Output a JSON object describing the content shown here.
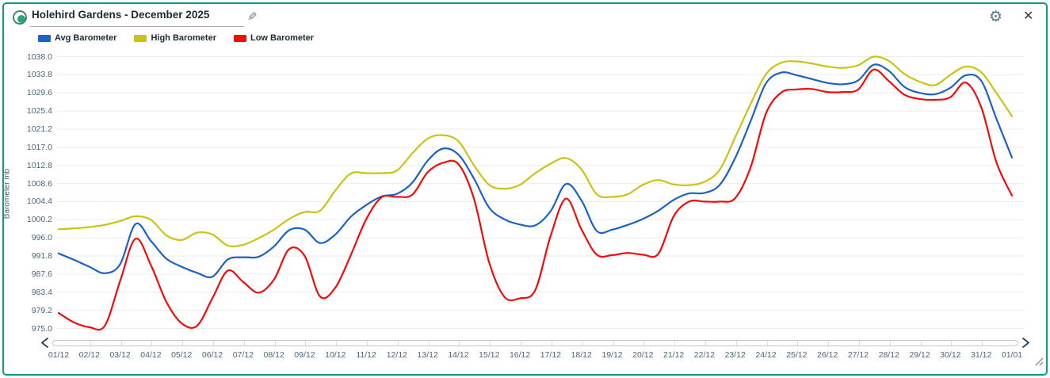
{
  "header": {
    "title": "Holehird Gardens - December 2025",
    "icons": {
      "radio": "radio-selected-icon",
      "edit": "pencil-icon",
      "settings": "gear-icon",
      "close": "close-icon"
    }
  },
  "colors": {
    "panel_border": "#0e9a88",
    "radio_ring": "#49807c",
    "radio_dot": "#2aa37a",
    "avg": "#1b62c2",
    "high": "#c9c413",
    "low": "#f30b0b",
    "grid": "#ebebeb",
    "axis_text": "#49687a",
    "title_text": "#1b2a33",
    "chevron": "#24425c",
    "scroll_tick": "#dcdcdc"
  },
  "legend": [
    {
      "label": "Avg Barometer",
      "color_key": "avg"
    },
    {
      "label": "High Barometer",
      "color_key": "high"
    },
    {
      "label": "Low Barometer",
      "color_key": "low"
    }
  ],
  "chart_data": {
    "type": "line",
    "title": "Holehird Gardens - December 2025",
    "xlabel": "",
    "ylabel": "Barometer mb",
    "ylim": [
      975.0,
      1038.0
    ],
    "ytick_interval": 4.2,
    "yticks": [
      "1038.0",
      "1033.8",
      "1029.6",
      "1025.4",
      "1021.2",
      "1017.0",
      "1012.8",
      "1008.6",
      "1004.4",
      "1000.2",
      "996.0",
      "991.8",
      "987.6",
      "983.4",
      "979.2",
      "975.0"
    ],
    "x_tick_labels": [
      "01/12",
      "02/12",
      "03/12",
      "04/12",
      "05/12",
      "06/12",
      "07/12",
      "08/12",
      "09/12",
      "10/12",
      "11/12",
      "12/12",
      "13/12",
      "14/12",
      "15/12",
      "16/12",
      "17/12",
      "18/12",
      "19/12",
      "20/12",
      "21/12",
      "22/12",
      "23/12",
      "24/12",
      "25/12",
      "26/12",
      "27/12",
      "28/12",
      "29/12",
      "30/12",
      "31/12",
      "01/01"
    ],
    "x_units": "day of month (half-day sampling)",
    "x": [
      1,
      1.5,
      2,
      2.5,
      3,
      3.5,
      4,
      4.5,
      5,
      5.5,
      6,
      6.5,
      7,
      7.5,
      8,
      8.5,
      9,
      9.5,
      10,
      10.5,
      11,
      11.5,
      12,
      12.5,
      13,
      13.5,
      14,
      14.5,
      15,
      15.5,
      16,
      16.5,
      17,
      17.5,
      18,
      18.5,
      19,
      19.5,
      20,
      20.5,
      21,
      21.5,
      22,
      22.5,
      23,
      23.5,
      24,
      24.5,
      25,
      25.5,
      26,
      26.5,
      27,
      27.5,
      28,
      28.5,
      29,
      29.5,
      30,
      30.5,
      31,
      31.5,
      32
    ],
    "series": [
      {
        "name": "Avg Barometer",
        "color_key": "avg",
        "values": [
          992.4,
          990.9,
          989.3,
          987.8,
          989.9,
          999.2,
          995.3,
          991.2,
          989.3,
          987.9,
          987.0,
          991.0,
          991.5,
          991.6,
          994.0,
          997.8,
          997.9,
          994.8,
          996.8,
          1000.9,
          1003.6,
          1005.6,
          1006.2,
          1008.8,
          1013.9,
          1016.7,
          1015.3,
          1009.8,
          1003.0,
          1000.3,
          999.1,
          998.9,
          1002.2,
          1008.5,
          1004.7,
          997.6,
          997.9,
          999.0,
          1000.4,
          1002.3,
          1004.8,
          1006.3,
          1006.4,
          1008.3,
          1014.5,
          1023.0,
          1031.8,
          1034.3,
          1033.7,
          1032.8,
          1031.9,
          1031.6,
          1032.5,
          1036.1,
          1034.7,
          1031.0,
          1029.6,
          1029.3,
          1030.8,
          1033.7,
          1032.4,
          1023.5,
          1014.6
        ]
      },
      {
        "name": "High Barometer",
        "color_key": "high",
        "values": [
          998.0,
          998.2,
          998.5,
          999.0,
          999.9,
          1001.0,
          1000.2,
          996.6,
          995.5,
          997.2,
          996.8,
          994.2,
          994.4,
          995.9,
          997.9,
          1000.4,
          1002.0,
          1002.3,
          1007.0,
          1010.9,
          1011.0,
          1011.0,
          1011.6,
          1015.6,
          1019.0,
          1019.8,
          1018.4,
          1012.9,
          1008.3,
          1007.4,
          1008.3,
          1011.0,
          1013.2,
          1014.5,
          1011.9,
          1006.1,
          1005.5,
          1006.1,
          1008.3,
          1009.4,
          1008.4,
          1008.2,
          1009.0,
          1011.8,
          1019.3,
          1027.0,
          1033.9,
          1036.6,
          1036.9,
          1036.4,
          1035.7,
          1035.4,
          1036.0,
          1038.0,
          1037.0,
          1034.0,
          1032.2,
          1031.4,
          1033.8,
          1035.7,
          1034.4,
          1029.5,
          1024.2
        ]
      },
      {
        "name": "Low Barometer",
        "color_key": "low",
        "values": [
          978.6,
          976.4,
          975.3,
          975.6,
          986.0,
          995.8,
          989.7,
          981.2,
          976.2,
          975.6,
          982.0,
          988.4,
          985.8,
          983.3,
          986.3,
          993.4,
          991.8,
          982.4,
          984.5,
          992.0,
          1000.3,
          1005.4,
          1005.5,
          1006.0,
          1011.2,
          1013.4,
          1013.1,
          1005.2,
          990.3,
          982.3,
          982.0,
          983.9,
          996.5,
          1005.1,
          998.0,
          992.1,
          992.0,
          992.5,
          992.1,
          992.3,
          1001.0,
          1004.4,
          1004.4,
          1004.4,
          1005.2,
          1012.3,
          1024.8,
          1029.7,
          1030.4,
          1030.5,
          1029.8,
          1029.8,
          1030.4,
          1035.0,
          1032.3,
          1029.2,
          1028.2,
          1028.0,
          1028.6,
          1032.0,
          1026.3,
          1013.4,
          1005.8
        ]
      }
    ],
    "legend_position": "top-left",
    "grid": "horizontal-only"
  },
  "scrollbar": {
    "left_chevron": "scroll-left",
    "right_chevron": "scroll-right"
  }
}
